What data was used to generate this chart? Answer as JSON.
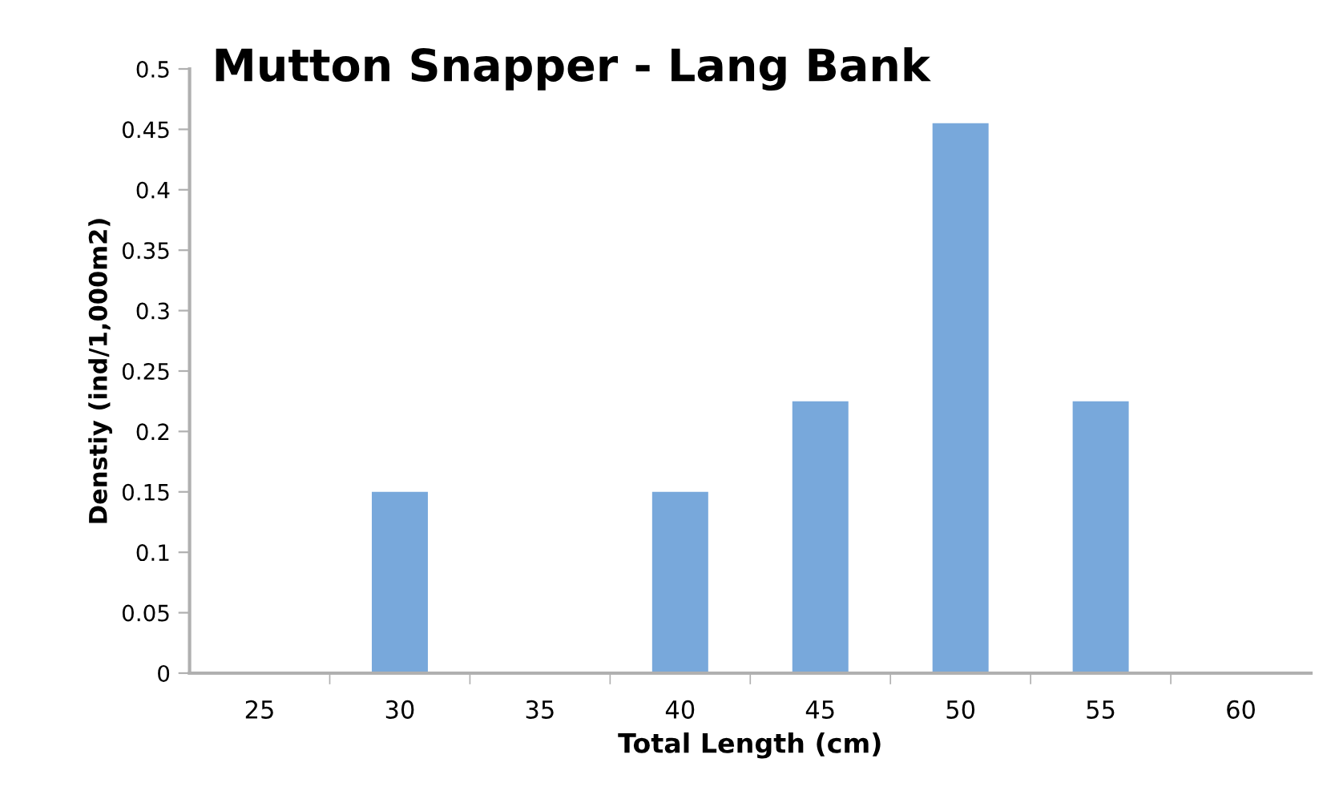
{
  "chart_data": {
    "type": "bar",
    "title": "Mutton Snapper - Lang Bank",
    "xlabel": "Total Length (cm)",
    "ylabel": "Denstiy (ind/1,000m2)",
    "categories": [
      "25",
      "30",
      "35",
      "40",
      "45",
      "50",
      "55",
      "60"
    ],
    "values": [
      0,
      0.15,
      0,
      0.15,
      0.225,
      0.455,
      0.225,
      0
    ],
    "color": "#78a8db",
    "ylim": [
      0,
      0.5
    ],
    "yticks": [
      0,
      0.05,
      0.1,
      0.15,
      0.2,
      0.25,
      0.3,
      0.35,
      0.4,
      0.45,
      0.5
    ],
    "grid": false
  }
}
